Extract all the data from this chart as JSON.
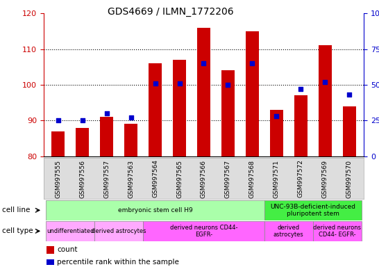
{
  "title": "GDS4669 / ILMN_1772206",
  "samples": [
    "GSM997555",
    "GSM997556",
    "GSM997557",
    "GSM997563",
    "GSM997564",
    "GSM997565",
    "GSM997566",
    "GSM997567",
    "GSM997568",
    "GSM997571",
    "GSM997572",
    "GSM997569",
    "GSM997570"
  ],
  "count_values": [
    87,
    88,
    91,
    89,
    106,
    107,
    116,
    104,
    115,
    93,
    97,
    111,
    94
  ],
  "percentile_values": [
    25,
    25,
    30,
    27,
    51,
    51,
    65,
    50,
    65,
    28,
    47,
    52,
    43
  ],
  "ylim_left": [
    80,
    120
  ],
  "ylim_right": [
    0,
    100
  ],
  "yticks_left": [
    80,
    90,
    100,
    110,
    120
  ],
  "yticks_right": [
    0,
    25,
    50,
    75,
    100
  ],
  "bar_color": "#cc0000",
  "dot_color": "#0000cc",
  "grid_color": "#000000",
  "cell_line_groups": [
    {
      "label": "embryonic stem cell H9",
      "start": 0,
      "end": 9,
      "color": "#aaffaa"
    },
    {
      "label": "UNC-93B-deficient-induced\npluripotent stem",
      "start": 9,
      "end": 13,
      "color": "#44ee44"
    }
  ],
  "cell_type_groups": [
    {
      "label": "undifferentiated",
      "start": 0,
      "end": 2,
      "color": "#ffaaff"
    },
    {
      "label": "derived astrocytes",
      "start": 2,
      "end": 4,
      "color": "#ffaaff"
    },
    {
      "label": "derived neurons CD44-\nEGFR-",
      "start": 4,
      "end": 9,
      "color": "#ff66ff"
    },
    {
      "label": "derived\nastrocytes",
      "start": 9,
      "end": 11,
      "color": "#ff66ff"
    },
    {
      "label": "derived neurons\nCD44- EGFR-",
      "start": 11,
      "end": 13,
      "color": "#ff66ff"
    }
  ],
  "legend_count_color": "#cc0000",
  "legend_dot_color": "#0000cc",
  "axis_left_color": "#cc0000",
  "axis_right_color": "#0000cc",
  "label_fontsize": 7,
  "tick_fontsize": 8
}
